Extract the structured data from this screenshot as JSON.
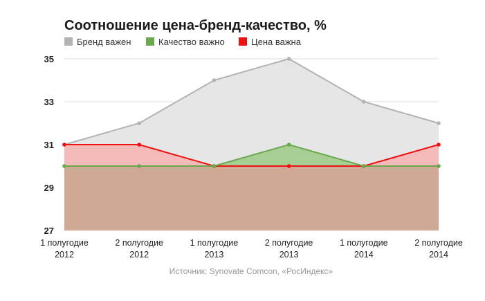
{
  "chart_data": {
    "type": "area",
    "title": "Соотношение цена-бренд-качество, %",
    "source": "Источник: Synovate Comcon, «РосИндекс»",
    "categories": [
      [
        "1 полугодие",
        "2012"
      ],
      [
        "2 полугодие",
        "2012"
      ],
      [
        "1 полугодие",
        "2013"
      ],
      [
        "2 полугодие",
        "2013"
      ],
      [
        "1 полугодие",
        "2014"
      ],
      [
        "2 полугодие",
        "2014"
      ]
    ],
    "ylim": [
      27,
      35
    ],
    "yticks": [
      27,
      29,
      31,
      33,
      35
    ],
    "grid": true,
    "legend_position": "top-left",
    "series": [
      {
        "name": "Бренд важен",
        "values": [
          31,
          32,
          34,
          35,
          33,
          32
        ],
        "color": "#b3b3b3",
        "fill": "#e6e6e6"
      },
      {
        "name": "Качество важно",
        "values": [
          30,
          30,
          30,
          31,
          30,
          30
        ],
        "color": "#6aa84f",
        "fill": "#a8cf93"
      },
      {
        "name": "Цена важна",
        "values": [
          31,
          31,
          30,
          30,
          30,
          31
        ],
        "color": "#ee1111",
        "fill": "#f4b9b9"
      }
    ]
  }
}
